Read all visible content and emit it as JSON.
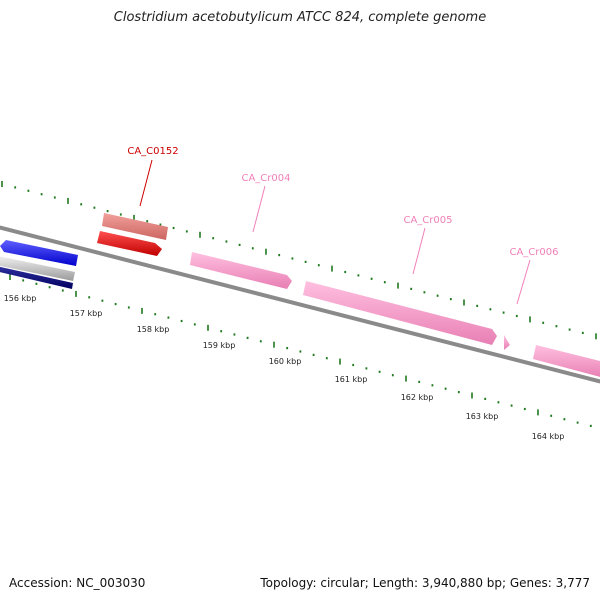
{
  "title": "Clostridium acetobutylicum ATCC 824, complete genome",
  "footer": {
    "accession": "Accession: NC_003030",
    "summary": "Topology: circular; Length: 3,940,880 bp; Genes: 3,777"
  },
  "colors": {
    "backbone": "#8a8a8a",
    "tick": "#1f7a1f",
    "gene_red": "#ff0000",
    "gene_salmon": "#e8807c",
    "gene_pink": "#ff99cc",
    "gene_blue": "#1a1aff",
    "gene_navy": "#0a0a80",
    "gene_gray": "#c8c8c8",
    "label_red": "#cc0000",
    "label_pink": "#f080b8"
  },
  "scale_labels": [
    "156 kbp",
    "157 kbp",
    "158 kbp",
    "159 kbp",
    "160 kbp",
    "161 kbp",
    "162 kbp",
    "163 kbp",
    "164 kbp"
  ],
  "gene_labels": [
    "CA_C0152",
    "CA_Cr004",
    "CA_Cr005",
    "CA_Cr006"
  ]
}
